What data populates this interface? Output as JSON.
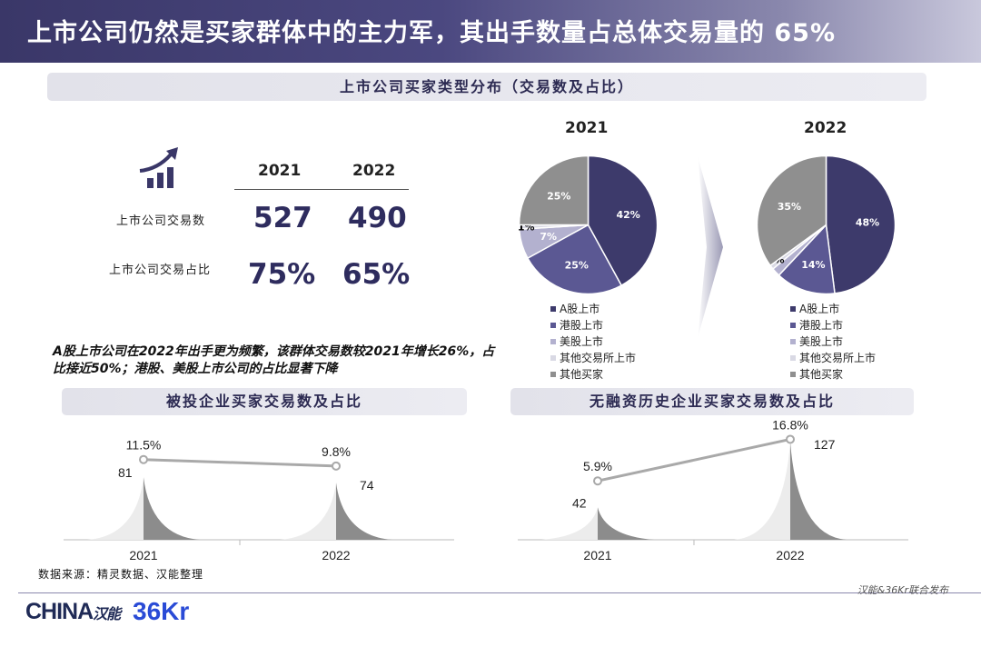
{
  "header": {
    "title": "上市公司仍然是买家群体中的主力军，其出手数量占总体交易量的  65%"
  },
  "section": {
    "title": "上市公司买家类型分布（交易数及占比）"
  },
  "stats": {
    "years": [
      "2021",
      "2022"
    ],
    "rows": [
      {
        "label": "上市公司交易数",
        "values": [
          "527",
          "490"
        ]
      },
      {
        "label": "上市公司交易占比",
        "values": [
          "75%",
          "65%"
        ]
      }
    ]
  },
  "note": {
    "text": "A股上市公司在2022年出手更为频繁，该群体交易数较2021年增长26%，占比接近50%；港股、美股上市公司的占比显著下降"
  },
  "source": {
    "text": "数据来源：精灵数据、汉能整理"
  },
  "publisher": {
    "text": "汉能&36Kr联合发布"
  },
  "logos": {
    "left": "CHINA",
    "left_cn": "汉能",
    "right": "36Kr"
  },
  "colors": {
    "a_share": "#3d3a6b",
    "hk": "#5b5893",
    "us": "#b3b1cf",
    "other_exchange": "#d9d9e4",
    "other_buyer": "#8f8f8f"
  },
  "chart_data": [
    {
      "type": "pie",
      "title": "2021",
      "labels": [
        "A股上市",
        "港股上市",
        "美股上市",
        "其他交易所上市",
        "其他买家"
      ],
      "values": [
        42,
        25,
        7,
        1,
        25
      ],
      "value_labels": [
        "42%",
        "25%",
        "7%",
        "1%",
        "25%"
      ]
    },
    {
      "type": "pie",
      "title": "2022",
      "labels": [
        "A股上市",
        "港股上市",
        "美股上市",
        "其他交易所上市",
        "其他买家"
      ],
      "values": [
        48,
        14,
        2,
        1,
        35
      ],
      "value_labels": [
        "48%",
        "14%",
        "",
        "1%",
        "35%"
      ]
    },
    {
      "type": "bar",
      "title": "被投企业买家交易数及占比",
      "categories": [
        "2021",
        "2022"
      ],
      "series": [
        {
          "values": [
            81,
            74
          ]
        }
      ],
      "line": {
        "values": [
          11.5,
          9.8
        ],
        "labels": [
          "11.5%",
          "9.8%"
        ]
      }
    },
    {
      "type": "bar",
      "title": "无融资历史企业买家交易数及占比",
      "categories": [
        "2021",
        "2022"
      ],
      "series": [
        {
          "values": [
            42,
            127
          ]
        }
      ],
      "line": {
        "values": [
          5.9,
          16.8
        ],
        "labels": [
          "5.9%",
          "16.8%"
        ]
      }
    }
  ]
}
